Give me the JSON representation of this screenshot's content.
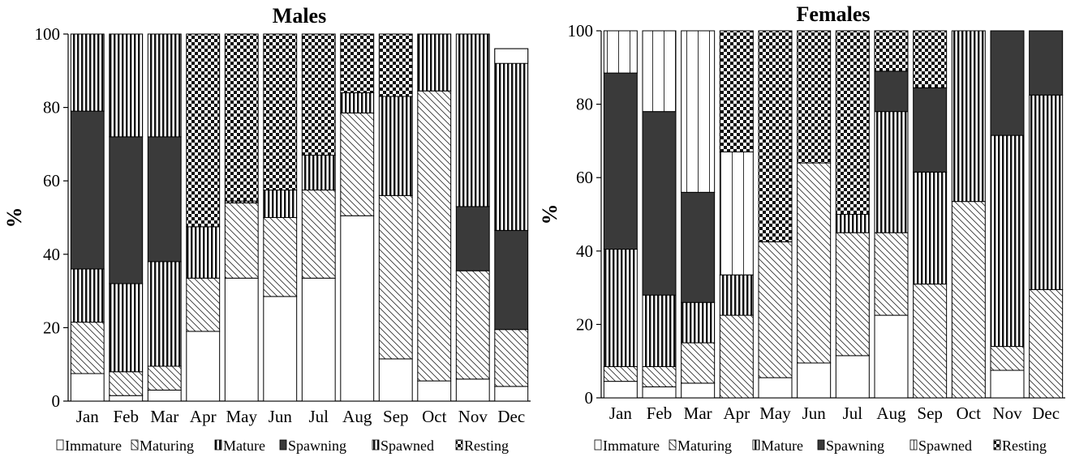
{
  "chart_data": [
    {
      "type": "bar",
      "stacked": true,
      "title": "Males",
      "ylabel": "%",
      "ylim": [
        0,
        100
      ],
      "yticks": [
        "0",
        "20",
        "40",
        "60",
        "80",
        "100"
      ],
      "categories": [
        "Jan",
        "Feb",
        "Mar",
        "Apr",
        "May",
        "Jun",
        "Jul",
        "Aug",
        "Sep",
        "Oct",
        "Nov",
        "Dec"
      ],
      "series": [
        {
          "name": "Immature",
          "pattern": "white",
          "values": [
            7.5,
            1.5,
            3,
            19,
            33.5,
            28.5,
            33.5,
            50.5,
            11.5,
            5.5,
            6,
            4
          ]
        },
        {
          "name": "Maturing",
          "pattern": "diagonal",
          "values": [
            14,
            6.5,
            6.5,
            14.5,
            20.5,
            21.5,
            24,
            28,
            44.5,
            79,
            29.5,
            15.5
          ]
        },
        {
          "name": "Mature",
          "pattern": "vertical",
          "values": [
            14.5,
            24,
            28.5,
            0,
            0,
            0,
            0,
            0,
            0,
            0,
            0,
            0
          ]
        },
        {
          "name": "Spawning",
          "pattern": "dark",
          "values": [
            43,
            40,
            34,
            0,
            0,
            0,
            0,
            0,
            0,
            0,
            17.5,
            27
          ]
        },
        {
          "name": "Spawned",
          "pattern": "vertical",
          "values": [
            21,
            28,
            28,
            14,
            0.5,
            7.5,
            9.5,
            5.5,
            27,
            15.5,
            47,
            46
          ]
        },
        {
          "name": "Resting",
          "pattern": "checker",
          "values": [
            0,
            0,
            0,
            52.5,
            45.5,
            42.5,
            33,
            16,
            17,
            0,
            0,
            3.5
          ]
        }
      ],
      "extra_segments_note_free": [
        {
          "category": "Dec",
          "pattern": "white",
          "from": 92,
          "to": 96
        }
      ],
      "legend": [
        "Immature",
        "Maturing",
        "Mature",
        "Spawning",
        "Spawned",
        "Resting"
      ],
      "legend_position": "bottom"
    },
    {
      "type": "bar",
      "stacked": true,
      "title": "Females",
      "ylabel": "%",
      "ylim": [
        0,
        100
      ],
      "yticks": [
        "0",
        "20",
        "40",
        "60",
        "80",
        "100"
      ],
      "categories": [
        "Jan",
        "Feb",
        "Mar",
        "Apr",
        "May",
        "Jun",
        "Jul",
        "Aug",
        "Sep",
        "Oct",
        "Nov",
        "Dec"
      ],
      "series": [
        {
          "name": "Immature",
          "pattern": "white",
          "values": [
            4.5,
            3,
            4,
            0,
            5.5,
            9.5,
            11.5,
            22.5,
            0,
            0,
            7.5,
            0
          ]
        },
        {
          "name": "Maturing",
          "pattern": "diagonal",
          "values": [
            4,
            5.5,
            11,
            22.5,
            37,
            54.5,
            33.5,
            22.5,
            31,
            53.5,
            6.5,
            29.5
          ]
        },
        {
          "name": "Mature",
          "pattern": "vertical",
          "values": [
            32,
            19.5,
            11,
            11,
            0,
            0,
            5,
            33,
            30.5,
            46.5,
            57.5,
            53
          ]
        },
        {
          "name": "Spawning",
          "pattern": "dark",
          "values": [
            48,
            50,
            30,
            0,
            0,
            0,
            0,
            11,
            23,
            0,
            28.5,
            17.5
          ]
        },
        {
          "name": "Spawned",
          "pattern": "vstripe",
          "values": [
            11.5,
            22,
            44,
            33.5,
            0,
            0,
            0,
            0,
            0,
            0,
            0,
            0
          ]
        },
        {
          "name": "Resting",
          "pattern": "checker",
          "values": [
            0,
            0,
            0,
            33,
            57.5,
            36,
            50,
            11,
            15.5,
            0,
            0,
            0
          ]
        }
      ],
      "legend": [
        "Immature",
        "Maturing",
        "Mature",
        "Spawning",
        "Spawned",
        "Resting"
      ],
      "legend_position": "bottom"
    }
  ]
}
